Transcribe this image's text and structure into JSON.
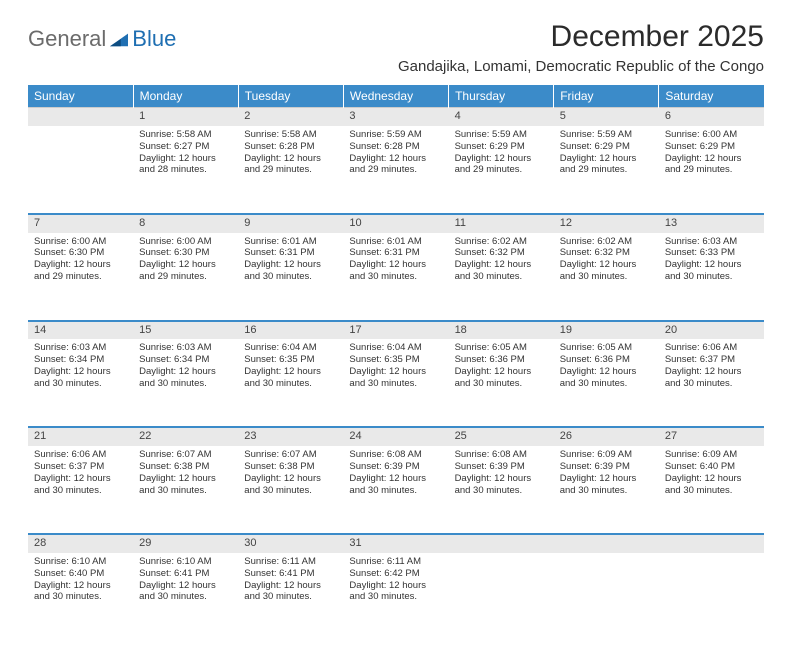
{
  "logo": {
    "text1": "General",
    "text2": "Blue"
  },
  "title": "December 2025",
  "location": "Gandajika, Lomami, Democratic Republic of the Congo",
  "colors": {
    "header_bg": "#3b8bc9",
    "header_text": "#ffffff",
    "daynum_bg": "#e9e9e9",
    "separator": "#3b8bc9",
    "body_text": "#333333",
    "logo_gray": "#6b6b6b",
    "logo_blue": "#1f6fb2"
  },
  "weekdays": [
    "Sunday",
    "Monday",
    "Tuesday",
    "Wednesday",
    "Thursday",
    "Friday",
    "Saturday"
  ],
  "weeks": [
    {
      "nums": [
        "",
        "1",
        "2",
        "3",
        "4",
        "5",
        "6"
      ],
      "cells": [
        null,
        {
          "sunrise": "Sunrise: 5:58 AM",
          "sunset": "Sunset: 6:27 PM",
          "day1": "Daylight: 12 hours",
          "day2": "and 28 minutes."
        },
        {
          "sunrise": "Sunrise: 5:58 AM",
          "sunset": "Sunset: 6:28 PM",
          "day1": "Daylight: 12 hours",
          "day2": "and 29 minutes."
        },
        {
          "sunrise": "Sunrise: 5:59 AM",
          "sunset": "Sunset: 6:28 PM",
          "day1": "Daylight: 12 hours",
          "day2": "and 29 minutes."
        },
        {
          "sunrise": "Sunrise: 5:59 AM",
          "sunset": "Sunset: 6:29 PM",
          "day1": "Daylight: 12 hours",
          "day2": "and 29 minutes."
        },
        {
          "sunrise": "Sunrise: 5:59 AM",
          "sunset": "Sunset: 6:29 PM",
          "day1": "Daylight: 12 hours",
          "day2": "and 29 minutes."
        },
        {
          "sunrise": "Sunrise: 6:00 AM",
          "sunset": "Sunset: 6:29 PM",
          "day1": "Daylight: 12 hours",
          "day2": "and 29 minutes."
        }
      ]
    },
    {
      "nums": [
        "7",
        "8",
        "9",
        "10",
        "11",
        "12",
        "13"
      ],
      "cells": [
        {
          "sunrise": "Sunrise: 6:00 AM",
          "sunset": "Sunset: 6:30 PM",
          "day1": "Daylight: 12 hours",
          "day2": "and 29 minutes."
        },
        {
          "sunrise": "Sunrise: 6:00 AM",
          "sunset": "Sunset: 6:30 PM",
          "day1": "Daylight: 12 hours",
          "day2": "and 29 minutes."
        },
        {
          "sunrise": "Sunrise: 6:01 AM",
          "sunset": "Sunset: 6:31 PM",
          "day1": "Daylight: 12 hours",
          "day2": "and 30 minutes."
        },
        {
          "sunrise": "Sunrise: 6:01 AM",
          "sunset": "Sunset: 6:31 PM",
          "day1": "Daylight: 12 hours",
          "day2": "and 30 minutes."
        },
        {
          "sunrise": "Sunrise: 6:02 AM",
          "sunset": "Sunset: 6:32 PM",
          "day1": "Daylight: 12 hours",
          "day2": "and 30 minutes."
        },
        {
          "sunrise": "Sunrise: 6:02 AM",
          "sunset": "Sunset: 6:32 PM",
          "day1": "Daylight: 12 hours",
          "day2": "and 30 minutes."
        },
        {
          "sunrise": "Sunrise: 6:03 AM",
          "sunset": "Sunset: 6:33 PM",
          "day1": "Daylight: 12 hours",
          "day2": "and 30 minutes."
        }
      ]
    },
    {
      "nums": [
        "14",
        "15",
        "16",
        "17",
        "18",
        "19",
        "20"
      ],
      "cells": [
        {
          "sunrise": "Sunrise: 6:03 AM",
          "sunset": "Sunset: 6:34 PM",
          "day1": "Daylight: 12 hours",
          "day2": "and 30 minutes."
        },
        {
          "sunrise": "Sunrise: 6:03 AM",
          "sunset": "Sunset: 6:34 PM",
          "day1": "Daylight: 12 hours",
          "day2": "and 30 minutes."
        },
        {
          "sunrise": "Sunrise: 6:04 AM",
          "sunset": "Sunset: 6:35 PM",
          "day1": "Daylight: 12 hours",
          "day2": "and 30 minutes."
        },
        {
          "sunrise": "Sunrise: 6:04 AM",
          "sunset": "Sunset: 6:35 PM",
          "day1": "Daylight: 12 hours",
          "day2": "and 30 minutes."
        },
        {
          "sunrise": "Sunrise: 6:05 AM",
          "sunset": "Sunset: 6:36 PM",
          "day1": "Daylight: 12 hours",
          "day2": "and 30 minutes."
        },
        {
          "sunrise": "Sunrise: 6:05 AM",
          "sunset": "Sunset: 6:36 PM",
          "day1": "Daylight: 12 hours",
          "day2": "and 30 minutes."
        },
        {
          "sunrise": "Sunrise: 6:06 AM",
          "sunset": "Sunset: 6:37 PM",
          "day1": "Daylight: 12 hours",
          "day2": "and 30 minutes."
        }
      ]
    },
    {
      "nums": [
        "21",
        "22",
        "23",
        "24",
        "25",
        "26",
        "27"
      ],
      "cells": [
        {
          "sunrise": "Sunrise: 6:06 AM",
          "sunset": "Sunset: 6:37 PM",
          "day1": "Daylight: 12 hours",
          "day2": "and 30 minutes."
        },
        {
          "sunrise": "Sunrise: 6:07 AM",
          "sunset": "Sunset: 6:38 PM",
          "day1": "Daylight: 12 hours",
          "day2": "and 30 minutes."
        },
        {
          "sunrise": "Sunrise: 6:07 AM",
          "sunset": "Sunset: 6:38 PM",
          "day1": "Daylight: 12 hours",
          "day2": "and 30 minutes."
        },
        {
          "sunrise": "Sunrise: 6:08 AM",
          "sunset": "Sunset: 6:39 PM",
          "day1": "Daylight: 12 hours",
          "day2": "and 30 minutes."
        },
        {
          "sunrise": "Sunrise: 6:08 AM",
          "sunset": "Sunset: 6:39 PM",
          "day1": "Daylight: 12 hours",
          "day2": "and 30 minutes."
        },
        {
          "sunrise": "Sunrise: 6:09 AM",
          "sunset": "Sunset: 6:39 PM",
          "day1": "Daylight: 12 hours",
          "day2": "and 30 minutes."
        },
        {
          "sunrise": "Sunrise: 6:09 AM",
          "sunset": "Sunset: 6:40 PM",
          "day1": "Daylight: 12 hours",
          "day2": "and 30 minutes."
        }
      ]
    },
    {
      "nums": [
        "28",
        "29",
        "30",
        "31",
        "",
        "",
        ""
      ],
      "cells": [
        {
          "sunrise": "Sunrise: 6:10 AM",
          "sunset": "Sunset: 6:40 PM",
          "day1": "Daylight: 12 hours",
          "day2": "and 30 minutes."
        },
        {
          "sunrise": "Sunrise: 6:10 AM",
          "sunset": "Sunset: 6:41 PM",
          "day1": "Daylight: 12 hours",
          "day2": "and 30 minutes."
        },
        {
          "sunrise": "Sunrise: 6:11 AM",
          "sunset": "Sunset: 6:41 PM",
          "day1": "Daylight: 12 hours",
          "day2": "and 30 minutes."
        },
        {
          "sunrise": "Sunrise: 6:11 AM",
          "sunset": "Sunset: 6:42 PM",
          "day1": "Daylight: 12 hours",
          "day2": "and 30 minutes."
        },
        null,
        null,
        null
      ]
    }
  ]
}
